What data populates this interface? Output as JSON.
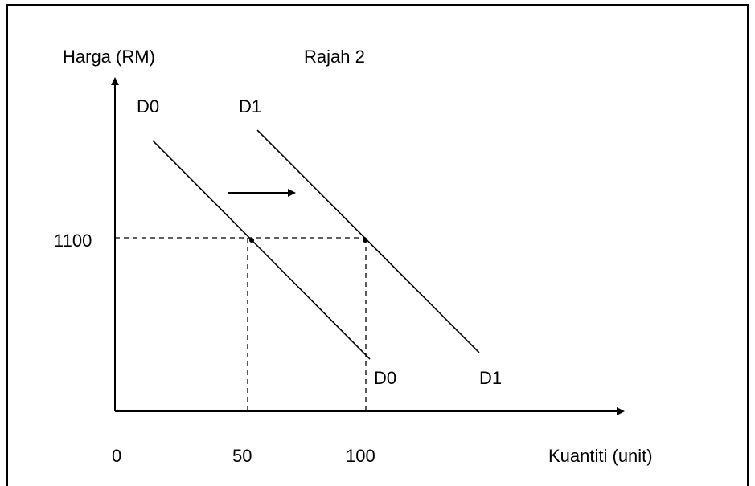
{
  "chart_data": {
    "type": "line",
    "title": "Rajah 2",
    "ylabel": "Harga (RM)",
    "xlabel": "Kuantiti (unit)",
    "x_ticks": [
      "0",
      "50",
      "100"
    ],
    "y_ticks": [
      "1100"
    ],
    "series": [
      {
        "name": "D0",
        "start_label": "D0",
        "end_label": "D0",
        "points": [
          [
            50,
            1100
          ]
        ]
      },
      {
        "name": "D1",
        "start_label": "D1",
        "end_label": "D1",
        "points": [
          [
            100,
            1100
          ]
        ]
      }
    ],
    "reference_price": 1100,
    "reference_quantities": [
      50,
      100
    ],
    "shift": "right",
    "grid": false
  },
  "colors": {
    "line": "#000000",
    "background": "#ffffff"
  }
}
